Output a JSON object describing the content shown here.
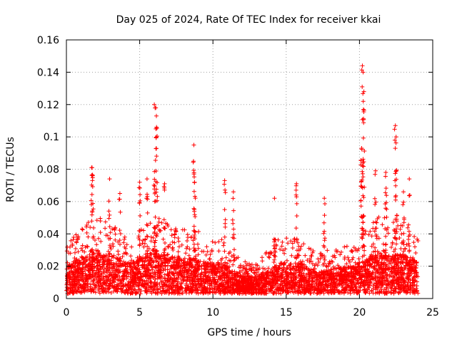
{
  "chart_data": {
    "type": "scatter",
    "title": "Day 025 of 2024, Rate Of TEC Index for receiver kkai",
    "xlabel": "GPS time / hours",
    "ylabel": "ROTI / TECUs",
    "xlim": [
      0,
      25
    ],
    "ylim": [
      0,
      0.16
    ],
    "x_ticks": [
      0,
      5,
      10,
      15,
      20,
      25
    ],
    "x_tick_labels": [
      "0",
      "5",
      "10",
      "15",
      "20",
      "25"
    ],
    "y_ticks": [
      0,
      0.02,
      0.04,
      0.06,
      0.08,
      0.1,
      0.12,
      0.14,
      0.16
    ],
    "y_tick_labels": [
      "0",
      "0.02",
      "0.04",
      "0.06",
      "0.08",
      "0.1",
      "0.12",
      "0.14",
      "0.16"
    ],
    "grid": true,
    "marker": "+",
    "color": "#ff0000",
    "series": [
      {
        "name": "ROTI",
        "baseline_x": [
          0,
          0.5,
          1,
          1.5,
          2,
          2.5,
          3,
          3.5,
          4,
          4.5,
          5,
          5.5,
          6,
          6.5,
          7,
          7.5,
          8,
          8.5,
          9,
          9.5,
          10,
          10.5,
          11,
          11.5,
          12,
          12.5,
          13,
          13.5,
          14,
          14.5,
          15,
          15.5,
          16,
          16.5,
          17,
          17.5,
          18,
          18.5,
          19,
          19.5,
          20,
          20.5,
          21,
          21.5,
          22,
          22.5,
          23,
          23.5,
          24
        ],
        "baseline_upper": [
          0.03,
          0.035,
          0.04,
          0.045,
          0.05,
          0.045,
          0.045,
          0.04,
          0.035,
          0.035,
          0.04,
          0.045,
          0.05,
          0.045,
          0.045,
          0.04,
          0.04,
          0.04,
          0.04,
          0.035,
          0.035,
          0.035,
          0.03,
          0.025,
          0.02,
          0.02,
          0.02,
          0.025,
          0.03,
          0.035,
          0.035,
          0.035,
          0.035,
          0.03,
          0.025,
          0.025,
          0.03,
          0.03,
          0.03,
          0.03,
          0.035,
          0.04,
          0.045,
          0.05,
          0.045,
          0.045,
          0.045,
          0.04,
          0.035
        ],
        "peaks": [
          {
            "x": 1.75,
            "y": 0.081
          },
          {
            "x": 1.8,
            "y": 0.076
          },
          {
            "x": 2.95,
            "y": 0.074
          },
          {
            "x": 3.65,
            "y": 0.065
          },
          {
            "x": 5.0,
            "y": 0.072
          },
          {
            "x": 5.5,
            "y": 0.074
          },
          {
            "x": 6.0,
            "y": 0.12
          },
          {
            "x": 6.1,
            "y": 0.118
          },
          {
            "x": 6.15,
            "y": 0.106
          },
          {
            "x": 6.7,
            "y": 0.071
          },
          {
            "x": 8.7,
            "y": 0.095
          },
          {
            "x": 8.75,
            "y": 0.072
          },
          {
            "x": 10.8,
            "y": 0.073
          },
          {
            "x": 11.4,
            "y": 0.066
          },
          {
            "x": 14.2,
            "y": 0.062
          },
          {
            "x": 15.7,
            "y": 0.071
          },
          {
            "x": 17.6,
            "y": 0.062
          },
          {
            "x": 20.2,
            "y": 0.144
          },
          {
            "x": 20.25,
            "y": 0.14
          },
          {
            "x": 20.3,
            "y": 0.128
          },
          {
            "x": 20.15,
            "y": 0.093
          },
          {
            "x": 21.1,
            "y": 0.079
          },
          {
            "x": 21.8,
            "y": 0.078
          },
          {
            "x": 22.45,
            "y": 0.107
          },
          {
            "x": 22.5,
            "y": 0.1
          },
          {
            "x": 23.4,
            "y": 0.074
          },
          {
            "x": 23.0,
            "y": 0.066
          }
        ]
      }
    ]
  }
}
